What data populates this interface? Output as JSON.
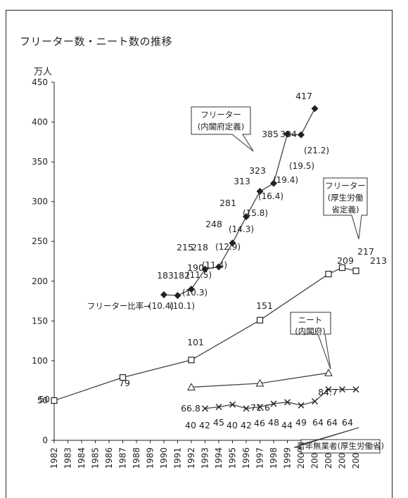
{
  "chart_data": {
    "type": "line",
    "title": "フリーター数・ニート数の推移",
    "ylabel": "万人",
    "xlabel": "",
    "ylim": [
      0,
      450
    ],
    "yticks": [
      0,
      50,
      100,
      150,
      200,
      250,
      300,
      350,
      400,
      450
    ],
    "x_categories": [
      "1982",
      "1983",
      "1984",
      "1985",
      "1986",
      "1987",
      "1988",
      "1989",
      "1990",
      "1991",
      "1992",
      "1993",
      "1994",
      "1995",
      "1996",
      "1997",
      "1998",
      "1999",
      "2000",
      "2001",
      "2002",
      "2003",
      "2004"
    ],
    "grid": false,
    "series": [
      {
        "name": "フリーター(内閣府定義)",
        "marker": "diamond",
        "x": [
          "1990",
          "1991",
          "1992",
          "1993",
          "1994",
          "1995",
          "1996",
          "1997",
          "1998",
          "1999",
          "2000",
          "2001"
        ],
        "y": [
          183,
          182,
          190,
          215,
          218,
          248,
          281,
          313,
          323,
          385,
          384,
          417
        ],
        "labels": [
          "183",
          "182",
          "190",
          "215",
          "218",
          "248",
          "281",
          "313",
          "323",
          "385",
          "384",
          "417"
        ],
        "ratio": [
          "(10.4)",
          "(10.1)",
          "(10.3)",
          "(11.5)",
          "(11.4)",
          "(12.9)",
          "(14.3)",
          "(15.8)",
          "(16.4)",
          "(19.4)",
          "(19.5)",
          "(21.2)"
        ]
      },
      {
        "name": "フリーター(厚生労働省定義)",
        "marker": "square",
        "x": [
          "1982",
          "1987",
          "1992",
          "1997",
          "2002",
          "2003",
          "2004"
        ],
        "y": [
          50,
          79,
          101,
          151,
          209,
          217,
          213
        ],
        "labels": [
          "50",
          "79",
          "101",
          "151",
          "209",
          "217",
          "213"
        ]
      },
      {
        "name": "ニート(内閣府)",
        "marker": "triangle",
        "x": [
          "1992",
          "1997",
          "2002"
        ],
        "y": [
          66.8,
          71.6,
          84.7
        ],
        "labels": [
          "66.8",
          "71.6",
          "84.7"
        ]
      },
      {
        "name": "若年無業者(厚生労働省)",
        "marker": "x",
        "x": [
          "1993",
          "1994",
          "1995",
          "1996",
          "1997",
          "1998",
          "1999",
          "2000",
          "2001",
          "2002",
          "2003",
          "2004"
        ],
        "y": [
          40,
          42,
          45,
          40,
          42,
          46,
          48,
          44,
          49,
          64,
          64,
          64
        ],
        "labels": [
          "40",
          "42",
          "45",
          "40",
          "42",
          "46",
          "48",
          "44",
          "49",
          "64",
          "64",
          "64"
        ]
      }
    ],
    "annotations": {
      "ratio_prefix": "フリーター比率→",
      "callout_freeter_cabinet": [
        "フリーター",
        "(内閣府定義)"
      ],
      "callout_freeter_mhlw": [
        "フリーター",
        "(厚生労働",
        "省定義)"
      ],
      "callout_neet": [
        "ニート",
        "(内閣府)"
      ],
      "callout_jobless": "若年無業者(厚生労働省)"
    }
  }
}
